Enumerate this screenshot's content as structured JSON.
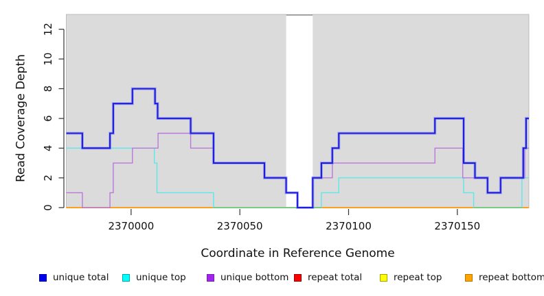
{
  "figure": {
    "xlabel": "Coordinate in Reference Genome",
    "ylabel": "Read Coverage Depth"
  },
  "chart_data": {
    "type": "line",
    "subtype": "step-coverage",
    "title": "",
    "xlabel": "Coordinate in Reference Genome",
    "ylabel": "Read Coverage Depth",
    "xlim": [
      2369970.2,
      2370182.9
    ],
    "ylim": [
      0,
      13
    ],
    "x_ticks": [
      "2370000",
      "2370050",
      "2370100",
      "2370150"
    ],
    "x_tick_values": [
      2370000,
      2370050,
      2370100,
      2370150
    ],
    "y_ticks": [
      "0",
      "2",
      "4",
      "6",
      "8",
      "10",
      "12"
    ],
    "y_tick_values": [
      0,
      2,
      4,
      6,
      8,
      10,
      12
    ],
    "grid": false,
    "legend_position": "bottom",
    "plot_bg": "#dbdbdb",
    "plot_border": "#b3b3b3",
    "axis_color": "#333333",
    "gap_region": {
      "from": 2370071.3,
      "to": 2370083.5,
      "fill": "#ffffff",
      "cap_color": "#8c8c8c"
    },
    "series": [
      {
        "name": "unique total",
        "color": "#1d1de0",
        "halo": "#7878f0",
        "width": 2.1,
        "steps": [
          [
            2369970.2,
            5
          ],
          [
            2369977.6,
            4
          ],
          [
            2369990.3,
            5
          ],
          [
            2369991.8,
            7
          ],
          [
            2370000.6,
            8
          ],
          [
            2370011.0,
            7
          ],
          [
            2370012.2,
            6
          ],
          [
            2370027.4,
            5
          ],
          [
            2370037.9,
            3
          ],
          [
            2370061.3,
            2
          ],
          [
            2370071.3,
            1
          ],
          [
            2370076.5,
            0
          ],
          [
            2370083.5,
            2
          ],
          [
            2370087.5,
            3
          ],
          [
            2370092.5,
            4
          ],
          [
            2370095.5,
            5
          ],
          [
            2370139.7,
            6
          ],
          [
            2370152.9,
            3
          ],
          [
            2370158.1,
            2
          ],
          [
            2370163.9,
            1
          ],
          [
            2370169.9,
            2
          ],
          [
            2370180.3,
            4
          ],
          [
            2370181.6,
            6
          ]
        ]
      },
      {
        "name": "unique top",
        "color": "#5fe6e9",
        "halo": null,
        "width": 1.4,
        "steps": [
          [
            2369970.2,
            4
          ],
          [
            2370010.7,
            3
          ],
          [
            2370011.9,
            1
          ],
          [
            2370037.9,
            0
          ],
          [
            2370087.5,
            1
          ],
          [
            2370095.5,
            2
          ],
          [
            2370152.9,
            1
          ],
          [
            2370157.5,
            0
          ],
          [
            2370179.7,
            2
          ]
        ]
      },
      {
        "name": "unique bottom",
        "color": "#b878db",
        "halo": null,
        "width": 1.4,
        "steps": [
          [
            2369970.2,
            1
          ],
          [
            2369977.6,
            0
          ],
          [
            2369990.3,
            1
          ],
          [
            2369991.8,
            3
          ],
          [
            2370000.6,
            4
          ],
          [
            2370012.4,
            5
          ],
          [
            2370027.4,
            4
          ],
          [
            2370037.9,
            3
          ],
          [
            2370061.3,
            2
          ],
          [
            2370071.3,
            1
          ],
          [
            2370076.5,
            0
          ],
          [
            2370083.5,
            2
          ],
          [
            2370092.5,
            3
          ],
          [
            2370139.7,
            4
          ],
          [
            2370152.5,
            2
          ],
          [
            2370163.9,
            1
          ],
          [
            2370169.9,
            2
          ],
          [
            2370181.0,
            4
          ]
        ]
      },
      {
        "name": "repeat total",
        "color": "#cc0000",
        "halo": null,
        "width": 1.4,
        "steps": [
          [
            2369970.2,
            0
          ]
        ]
      },
      {
        "name": "repeat top",
        "color": "#eeee00",
        "halo": null,
        "width": 1.4,
        "steps": [
          [
            2369970.2,
            0
          ]
        ]
      },
      {
        "name": "repeat bottom",
        "color": "#ff9d1c",
        "halo": null,
        "width": 1.8,
        "steps": [
          [
            2369970.2,
            0
          ]
        ]
      }
    ],
    "draw_order": [
      "repeat total",
      "repeat top",
      "repeat bottom",
      "unique top",
      "__overlaps__",
      "unique bottom",
      "unique total"
    ],
    "overlap_segments": [
      {
        "y": 0,
        "from": 2370037.9,
        "to": 2370076.5,
        "color": "#72c883"
      },
      {
        "y": 0,
        "from": 2370083.5,
        "to": 2370087.5,
        "color": "#72c883"
      },
      {
        "y": 0,
        "from": 2370157.5,
        "to": 2370179.8,
        "color": "#72c883"
      }
    ]
  },
  "legend": {
    "items": [
      {
        "label": "unique total",
        "fill": "#0000ee",
        "border": "#0000aa"
      },
      {
        "label": "unique top",
        "fill": "#00ffff",
        "border": "#00a8a8"
      },
      {
        "label": "unique bottom",
        "fill": "#a224ee",
        "border": "#7a1bb3"
      },
      {
        "label": "repeat total",
        "fill": "#ff0000",
        "border": "#990000"
      },
      {
        "label": "repeat top",
        "fill": "#ffff00",
        "border": "#a3a300"
      },
      {
        "label": "repeat bottom",
        "fill": "#ffa500",
        "border": "#bb7700"
      }
    ]
  }
}
